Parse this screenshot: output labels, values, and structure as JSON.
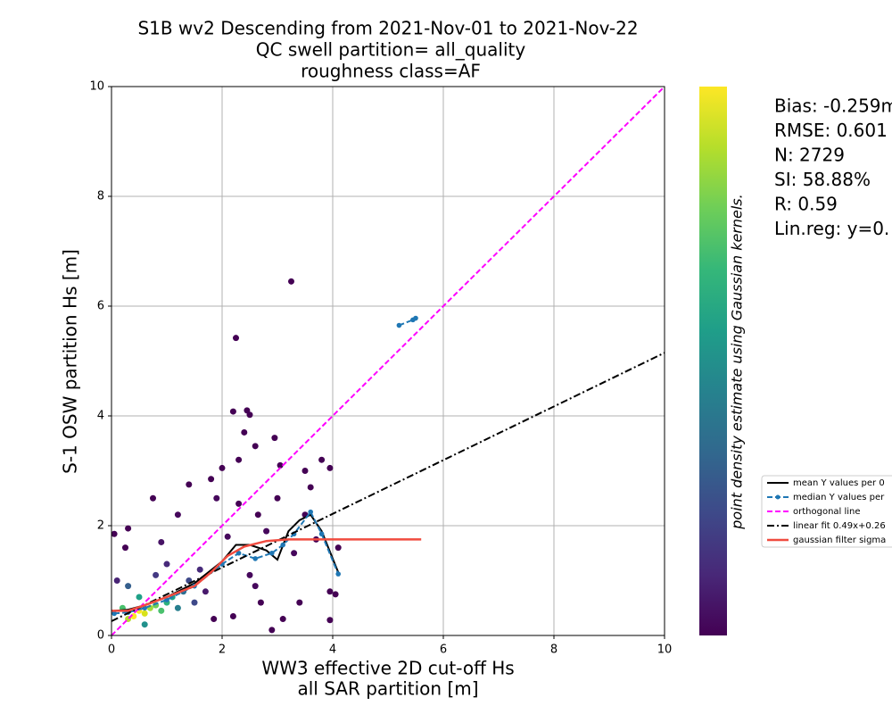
{
  "chart_data": {
    "type": "scatter",
    "title": [
      "S1B wv2 Descending from 2021-Nov-01 to 2021-Nov-22",
      "QC swell partition= all_quality",
      "roughness class=AF"
    ],
    "x_label": [
      "WW3 effective 2D cut-off Hs",
      "all SAR partition [m]"
    ],
    "y_label": "S-1 OSW partition Hs [m]",
    "colorbar_label": "point density estimate using Gaussian kernels.",
    "colormap": [
      "#440154",
      "#482878",
      "#3e4989",
      "#31688e",
      "#26828e",
      "#1f9e89",
      "#35b779",
      "#6ece58",
      "#b5de2b",
      "#fde725"
    ],
    "stats": [
      "Bias: -0.259m",
      "RMSE: 0.601",
      "N: 2729",
      "SI: 58.88%",
      "R: 0.59",
      "Lin.reg: y=0."
    ],
    "xlim": [
      0,
      10
    ],
    "ylim": [
      0,
      10
    ],
    "xticks": [
      0,
      2,
      4,
      6,
      8,
      10
    ],
    "yticks": [
      0,
      2,
      4,
      6,
      8,
      10
    ],
    "grid": true,
    "points": {
      "x": [
        2.25,
        3.25,
        2.2,
        2.45,
        2.5,
        2.4,
        2.6,
        2.95,
        3.05,
        2.3,
        2.0,
        1.8,
        1.4,
        0.75,
        0.3,
        0.05,
        0.25,
        3.5,
        3.6,
        3.8,
        3.95,
        4.1,
        4.05,
        3.95,
        3.95,
        3.4,
        3.1,
        2.9,
        2.2,
        2.6,
        2.8,
        2.3,
        2.65,
        3.3,
        3.7,
        1.9,
        2.1,
        1.2,
        0.9,
        3.0,
        2.5,
        1.85,
        2.7,
        3.5,
        1.7,
        1.0,
        0.1,
        0.8,
        1.6,
        1.5,
        1.4,
        0.3,
        1.3,
        1.2,
        0.6,
        0.5,
        1.1,
        1.0,
        0.2,
        0.9,
        0.8,
        0.7,
        0.3,
        0.6,
        0.5,
        0.4
      ],
      "y": [
        5.42,
        6.45,
        4.08,
        4.1,
        4.02,
        3.7,
        3.45,
        3.6,
        3.1,
        3.2,
        3.05,
        2.85,
        2.75,
        2.5,
        1.95,
        1.85,
        1.6,
        3.0,
        2.7,
        3.2,
        3.05,
        1.6,
        0.75,
        0.8,
        0.28,
        0.6,
        0.3,
        0.1,
        0.35,
        0.9,
        1.9,
        2.4,
        2.2,
        1.5,
        1.75,
        2.5,
        1.8,
        2.2,
        1.7,
        2.5,
        1.1,
        0.3,
        0.6,
        2.2,
        0.8,
        1.3,
        1.0,
        1.1,
        1.2,
        0.6,
        1.0,
        0.9,
        0.8,
        0.5,
        0.2,
        0.7,
        0.7,
        0.6,
        0.5,
        0.45,
        0.55,
        0.5,
        0.3,
        0.4,
        0.45,
        0.35
      ],
      "colors": [
        "#440154",
        "#440154",
        "#440154",
        "#440154",
        "#440154",
        "#440154",
        "#440154",
        "#440154",
        "#440154",
        "#440154",
        "#440154",
        "#440154",
        "#440154",
        "#440154",
        "#440154",
        "#440154",
        "#440154",
        "#440154",
        "#440154",
        "#440154",
        "#440154",
        "#440154",
        "#440154",
        "#440154",
        "#440154",
        "#440154",
        "#440154",
        "#440154",
        "#440154",
        "#46085c",
        "#46085c",
        "#440154",
        "#440154",
        "#46085c",
        "#440154",
        "#46085c",
        "#46085c",
        "#46085c",
        "#471365",
        "#440154",
        "#46085c",
        "#440154",
        "#440154",
        "#440154",
        "#481a6c",
        "#472a7a",
        "#482475",
        "#443983",
        "#472a7a",
        "#3e4989",
        "#3e4989",
        "#355f8d",
        "#2e6e8e",
        "#277f8e",
        "#21918c",
        "#1fa187",
        "#1fa187",
        "#2db27d",
        "#4ac16d",
        "#4ac16d",
        "#6ece58",
        "#a0da39",
        "#b5de2b",
        "#d8e219",
        "#fde725",
        "#fde725"
      ]
    },
    "series": [
      {
        "name": "mean Y values per 0",
        "color": "#000000",
        "style": "solid",
        "x": [
          0.05,
          0.3,
          0.6,
          1.0,
          1.5,
          2.0,
          2.25,
          2.5,
          2.8,
          3.0,
          3.2,
          3.4,
          3.6,
          3.8,
          4.1
        ],
        "values": [
          0.45,
          0.47,
          0.55,
          0.7,
          0.95,
          1.35,
          1.65,
          1.65,
          1.55,
          1.38,
          1.9,
          2.1,
          2.2,
          1.9,
          1.15
        ]
      },
      {
        "name": "median Y values per",
        "color": "#1f77b4",
        "style": "dashed",
        "markers": true,
        "x": [
          0.05,
          0.3,
          0.6,
          1.0,
          1.5,
          2.0,
          2.3,
          2.6,
          2.9,
          3.1,
          3.3,
          3.6,
          3.8,
          4.1,
          null,
          5.2,
          5.45,
          5.5
        ],
        "values": [
          0.4,
          0.42,
          0.5,
          0.65,
          0.9,
          1.3,
          1.5,
          1.4,
          1.5,
          1.65,
          1.85,
          2.25,
          1.85,
          1.12,
          null,
          5.65,
          5.75,
          5.78
        ]
      },
      {
        "name": "orthogonal line",
        "color": "#ff00ff",
        "style": "dashed",
        "x": [
          0,
          10
        ],
        "values": [
          0,
          10
        ]
      },
      {
        "name": "linear fit 0.49x+0.26",
        "color": "#000000",
        "style": "dashdot",
        "x": [
          0,
          10
        ],
        "values": [
          0.26,
          5.15
        ]
      },
      {
        "name": "gaussian filter sigma",
        "color": "#f04b3f",
        "style": "solid",
        "width": 2.5,
        "x": [
          0,
          0.3,
          0.6,
          1.0,
          1.5,
          1.8,
          2.1,
          2.4,
          2.8,
          3.2,
          4.0,
          5.6
        ],
        "values": [
          0.45,
          0.45,
          0.55,
          0.7,
          0.9,
          1.15,
          1.45,
          1.62,
          1.72,
          1.75,
          1.75,
          1.75
        ]
      }
    ]
  }
}
